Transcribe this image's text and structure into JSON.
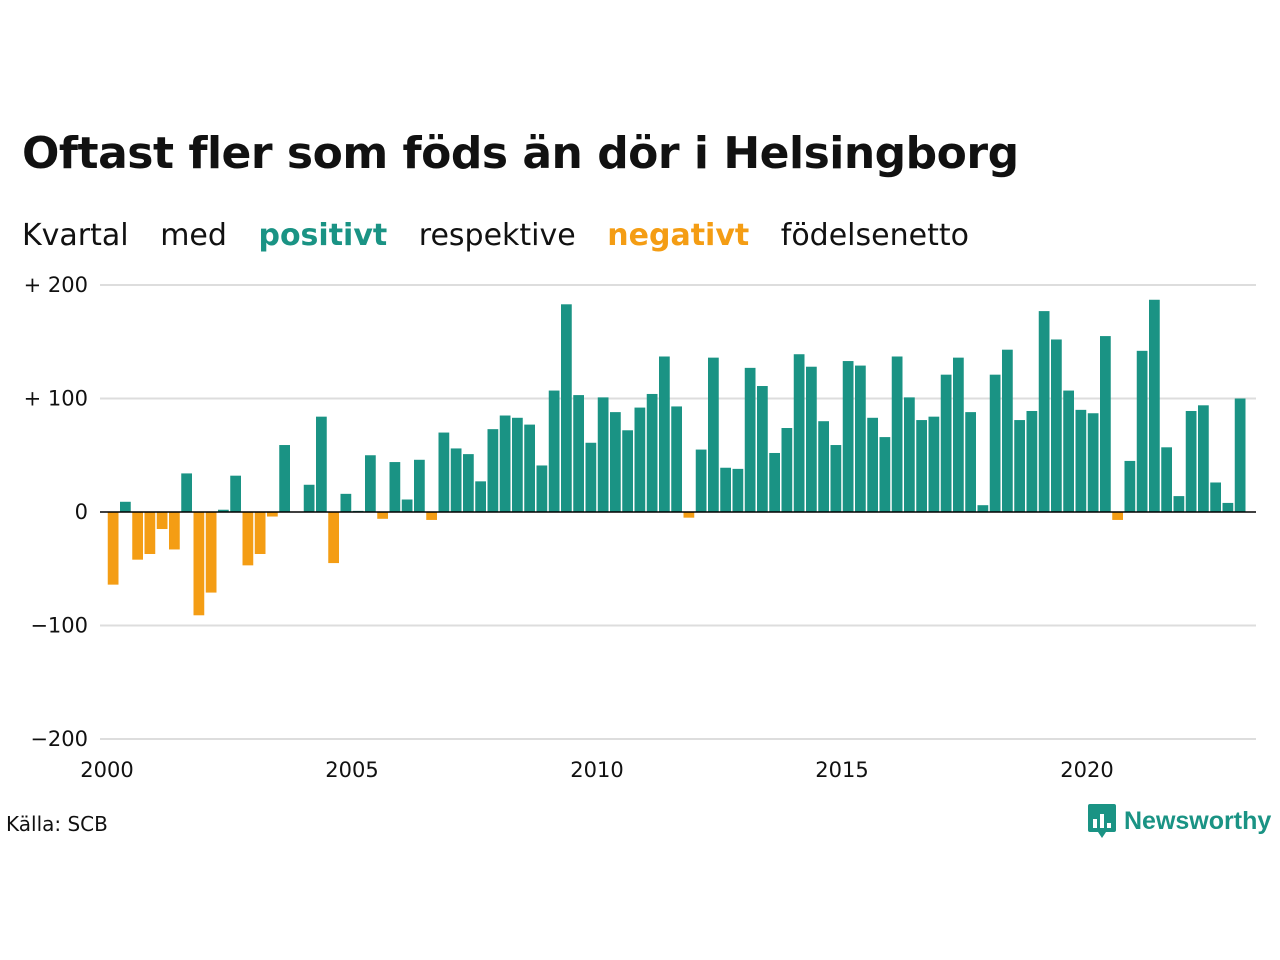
{
  "title": "Oftast fler som föds än dör i Helsingborg",
  "subtitle": {
    "word1": "Kvartal",
    "word2": "med",
    "positive": "positivt",
    "word3": "respektive",
    "negative": "negativt",
    "word4": "födelsenetto"
  },
  "source": "Källa: SCB",
  "logo": {
    "text": "Newsworthy",
    "icon": "bar-chart-bubble-icon"
  },
  "colors": {
    "positive": "#1a9384",
    "negative": "#f49d14",
    "grid": "#dddddd",
    "zero": "#000000"
  },
  "chart_data": {
    "type": "bar",
    "ylim": [
      -200,
      200
    ],
    "yticks": [
      200,
      100,
      0,
      -100,
      -200
    ],
    "ytick_labels": [
      "+ 200",
      "+ 100",
      "0",
      "−100",
      "−200"
    ],
    "xticks": [
      2000,
      2005,
      2010,
      2015,
      2020
    ],
    "xtick_labels": [
      "2000",
      "2005",
      "2010",
      "2015",
      "2020"
    ],
    "grid": true,
    "start_year": 2000,
    "values": [
      -64,
      9,
      -42,
      -37,
      -15,
      -33,
      34,
      -91,
      -71,
      2,
      32,
      -47,
      -37,
      -4,
      59,
      0,
      24,
      84,
      -45,
      16,
      1,
      50,
      -6,
      44,
      11,
      46,
      -7,
      70,
      56,
      51,
      27,
      73,
      85,
      83,
      77,
      41,
      107,
      183,
      103,
      61,
      101,
      88,
      72,
      92,
      104,
      137,
      93,
      -5,
      55,
      136,
      39,
      38,
      127,
      111,
      52,
      74,
      139,
      128,
      80,
      59,
      133,
      129,
      83,
      66,
      137,
      101,
      81,
      84,
      121,
      136,
      88,
      6,
      121,
      143,
      81,
      89,
      177,
      152,
      107,
      90,
      87,
      155,
      -7,
      45,
      142,
      187,
      57,
      14,
      89,
      94,
      26,
      8,
      100
    ]
  }
}
